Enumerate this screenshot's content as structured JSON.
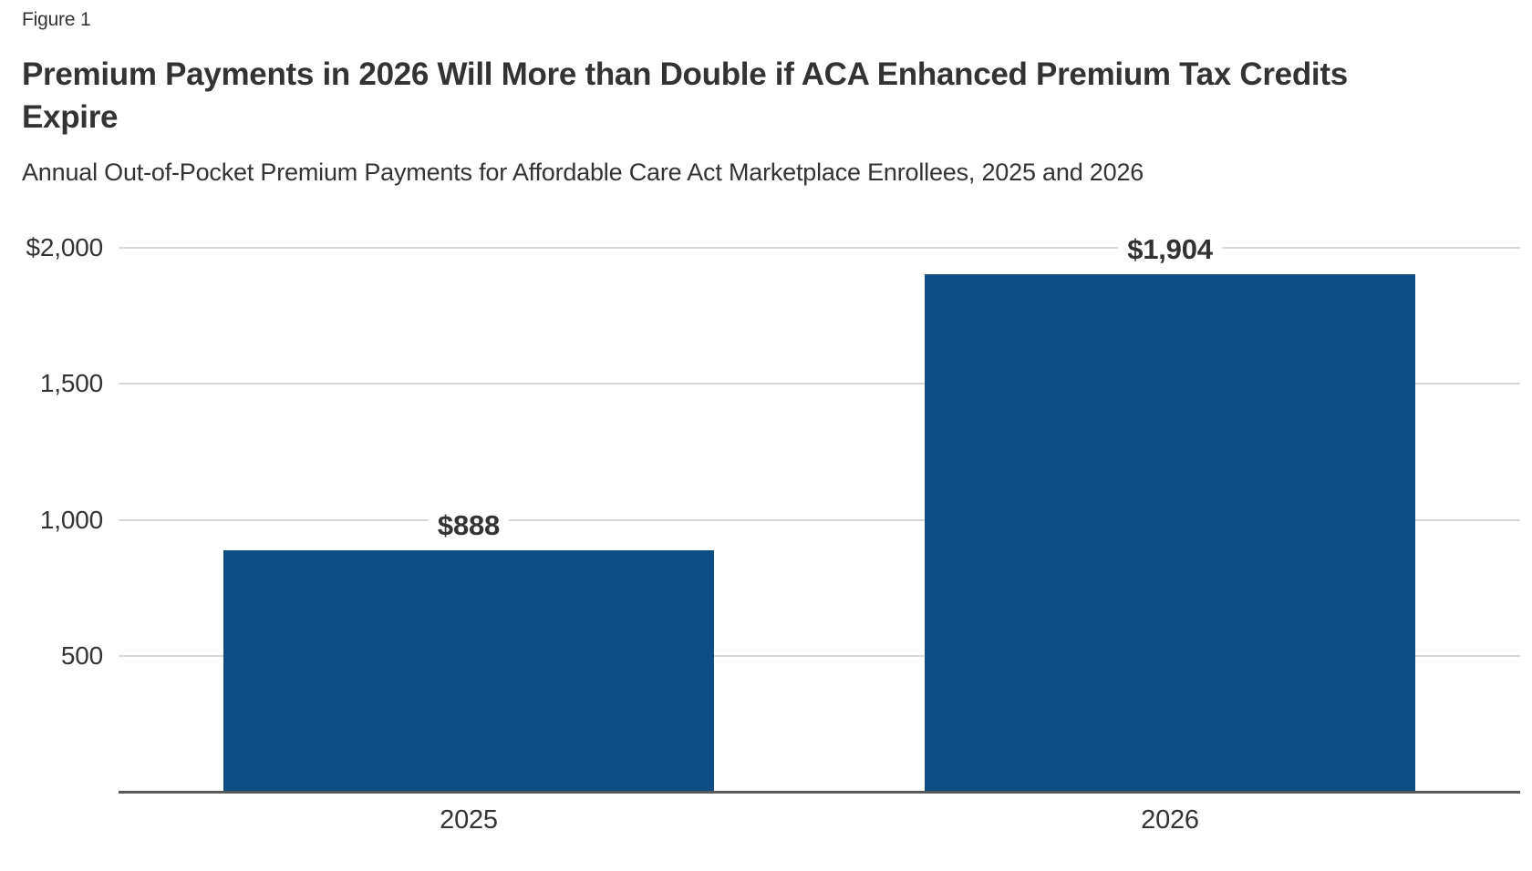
{
  "header": {
    "figure_label": "Figure 1",
    "title": "Premium Payments in 2026 Will More than Double if ACA Enhanced Premium Tax Credits Expire",
    "subtitle": "Annual Out-of-Pocket Premium Payments for Affordable Care Act Marketplace Enrollees, 2025 and 2026"
  },
  "colors": {
    "bar": "#0E4D86",
    "gridline": "#D9D9D9",
    "axis_line": "#58595B",
    "text": "#333333"
  },
  "chart_data": {
    "type": "bar",
    "categories": [
      "2025",
      "2026"
    ],
    "values": [
      888,
      1904
    ],
    "value_labels": [
      "$888",
      "$1,904"
    ],
    "title": "Premium Payments in 2026 Will More than Double if ACA Enhanced Premium Tax Credits Expire",
    "subtitle": "Annual Out-of-Pocket Premium Payments for Affordable Care Act Marketplace Enrollees, 2025 and 2026",
    "xlabel": "",
    "ylabel": "",
    "ylim": [
      0,
      2000
    ],
    "y_ticks": [
      {
        "value": 2000,
        "label": "$2,000"
      },
      {
        "value": 1500,
        "label": "1,500"
      },
      {
        "value": 1000,
        "label": "1,000"
      },
      {
        "value": 500,
        "label": "500"
      }
    ],
    "grid": true,
    "legend": false
  }
}
